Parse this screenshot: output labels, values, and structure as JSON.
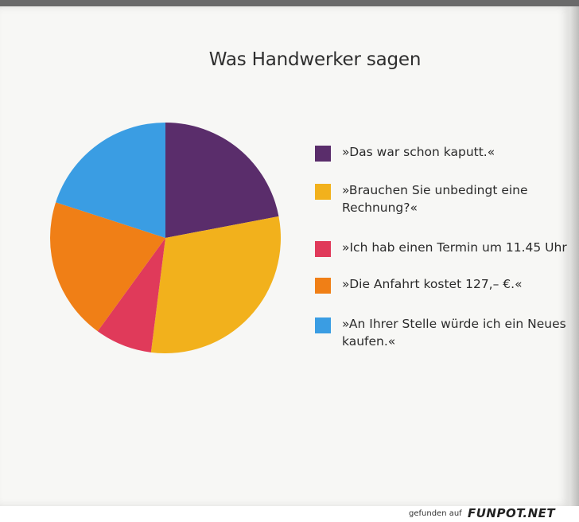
{
  "chart_data": {
    "type": "pie",
    "title": "Was Handwerker sagen",
    "categories": [
      "»Das war schon kaputt.«",
      "»Brauchen Sie unbedingt eine Rechnung?«",
      "»Ich hab einen Termin um 11.45 Uhr",
      "»Die Anfahrt kostet 127,– €.«",
      "»An Ihrer Stelle würde ich ein Neues kaufen.«"
    ],
    "values": [
      22,
      30,
      8,
      20,
      20
    ],
    "colors": [
      "#5a2d6b",
      "#f2b11c",
      "#e03a5a",
      "#f07f16",
      "#3a9de3"
    ],
    "legend": "right"
  },
  "footer": {
    "source_text": "gefunden auf",
    "logo_text": "FUNPOT.NET"
  }
}
